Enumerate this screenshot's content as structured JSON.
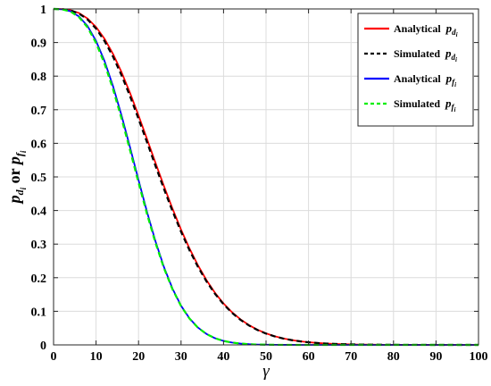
{
  "chart_data": {
    "type": "line",
    "title": "",
    "xlabel": "γ",
    "ylabel": {
      "text": "p",
      "sub1": "d",
      "sub2": "i",
      "mid": " or ",
      "text2": "p",
      "sub3": "f",
      "sub4": "i"
    },
    "xlim": [
      0,
      100
    ],
    "ylim": [
      0,
      1
    ],
    "x_ticks": [
      "0",
      "10",
      "20",
      "30",
      "40",
      "50",
      "60",
      "70",
      "80",
      "90",
      "100"
    ],
    "y_ticks": [
      "0",
      "0.1",
      "0.2",
      "0.3",
      "0.4",
      "0.5",
      "0.6",
      "0.7",
      "0.8",
      "0.9",
      "1"
    ],
    "grid": true,
    "legend_position": "top-right",
    "x": [
      0,
      2,
      4,
      6,
      8,
      10,
      12,
      14,
      16,
      18,
      20,
      22,
      24,
      26,
      28,
      30,
      32,
      34,
      36,
      38,
      40,
      42,
      44,
      46,
      48,
      50,
      52,
      54,
      56,
      58,
      60,
      62,
      64,
      66,
      68,
      70,
      72,
      74,
      76,
      78,
      80,
      82,
      84,
      86,
      88,
      90,
      92,
      94,
      96,
      98,
      100
    ],
    "series": [
      {
        "name": "Analytical p_di",
        "label": "Analytical",
        "sym": "p",
        "sub1": "d",
        "sub2": "i",
        "color": "#ff0000",
        "dash": "solid",
        "values": [
          1.0,
          0.9995,
          0.9962,
          0.9876,
          0.9715,
          0.9462,
          0.911,
          0.8659,
          0.8117,
          0.7499,
          0.6828,
          0.6126,
          0.5415,
          0.4718,
          0.4052,
          0.3431,
          0.2867,
          0.2364,
          0.1925,
          0.1549,
          0.1233,
          0.0972,
          0.0759,
          0.0587,
          0.045,
          0.0343,
          0.0259,
          0.0194,
          0.0145,
          0.0107,
          0.0079,
          0.0058,
          0.0042,
          0.003,
          0.0022,
          0.0016,
          0.0011,
          0.0008,
          0.0006,
          0.0004,
          0.0003,
          0.0002,
          0.0001,
          0.0001,
          0.0001,
          0.0,
          0.0,
          0.0,
          0.0,
          0.0,
          0.0
        ]
      },
      {
        "name": "Simulated p_di",
        "label": "Simulated",
        "sym": "p",
        "sub1": "d",
        "sub2": "i",
        "color": "#000000",
        "dash": "dashed",
        "values": [
          1.0,
          0.9995,
          0.9958,
          0.9861,
          0.9685,
          0.9415,
          0.9044,
          0.8578,
          0.8025,
          0.7401,
          0.6728,
          0.6029,
          0.5324,
          0.4635,
          0.3979,
          0.3368,
          0.2813,
          0.2318,
          0.1888,
          0.1519,
          0.121,
          0.0954,
          0.0745,
          0.0577,
          0.0442,
          0.0337,
          0.0255,
          0.0191,
          0.0143,
          0.0106,
          0.0078,
          0.0057,
          0.0041,
          0.003,
          0.0022,
          0.0016,
          0.0011,
          0.0008,
          0.0006,
          0.0004,
          0.0003,
          0.0002,
          0.0001,
          0.0001,
          0.0001,
          0.0,
          0.0,
          0.0,
          0.0,
          0.0,
          0.0
        ]
      },
      {
        "name": "Analytical p_fi",
        "label": "Analytical",
        "sym": "p",
        "sub1": "f",
        "sub2": "i",
        "color": "#0000ff",
        "dash": "solid",
        "values": [
          1.0,
          0.9991,
          0.993,
          0.9775,
          0.9489,
          0.9048,
          0.8447,
          0.7698,
          0.6828,
          0.588,
          0.4905,
          0.3955,
          0.3079,
          0.2311,
          0.1672,
          0.1167,
          0.0787,
          0.0513,
          0.0325,
          0.0199,
          0.0118,
          0.0069,
          0.0039,
          0.0021,
          0.0011,
          0.0006,
          0.0003,
          0.0001,
          0.0001,
          0.0,
          0.0,
          0.0,
          0.0,
          0.0,
          0.0,
          0.0,
          0.0,
          0.0,
          0.0,
          0.0,
          0.0,
          0.0,
          0.0,
          0.0,
          0.0,
          0.0,
          0.0,
          0.0,
          0.0,
          0.0,
          0.0
        ]
      },
      {
        "name": "Simulated p_fi",
        "label": "Simulated",
        "sym": "p",
        "sub1": "f",
        "sub2": "i",
        "color": "#00ee00",
        "dash": "dashed",
        "values": [
          1.0,
          0.999,
          0.9922,
          0.9753,
          0.945,
          0.8988,
          0.837,
          0.761,
          0.6737,
          0.5793,
          0.4828,
          0.3892,
          0.3031,
          0.2278,
          0.1652,
          0.1156,
          0.0781,
          0.051,
          0.0323,
          0.0198,
          0.0118,
          0.0069,
          0.0039,
          0.0021,
          0.0011,
          0.0006,
          0.0003,
          0.0001,
          0.0001,
          0.0,
          0.0,
          0.0,
          0.0,
          0.0,
          0.0,
          0.0,
          0.0,
          0.0,
          0.0,
          0.0,
          0.0,
          0.0,
          0.0,
          0.0,
          0.0,
          0.0,
          0.0,
          0.0,
          0.0,
          0.0,
          0.0
        ]
      }
    ]
  }
}
